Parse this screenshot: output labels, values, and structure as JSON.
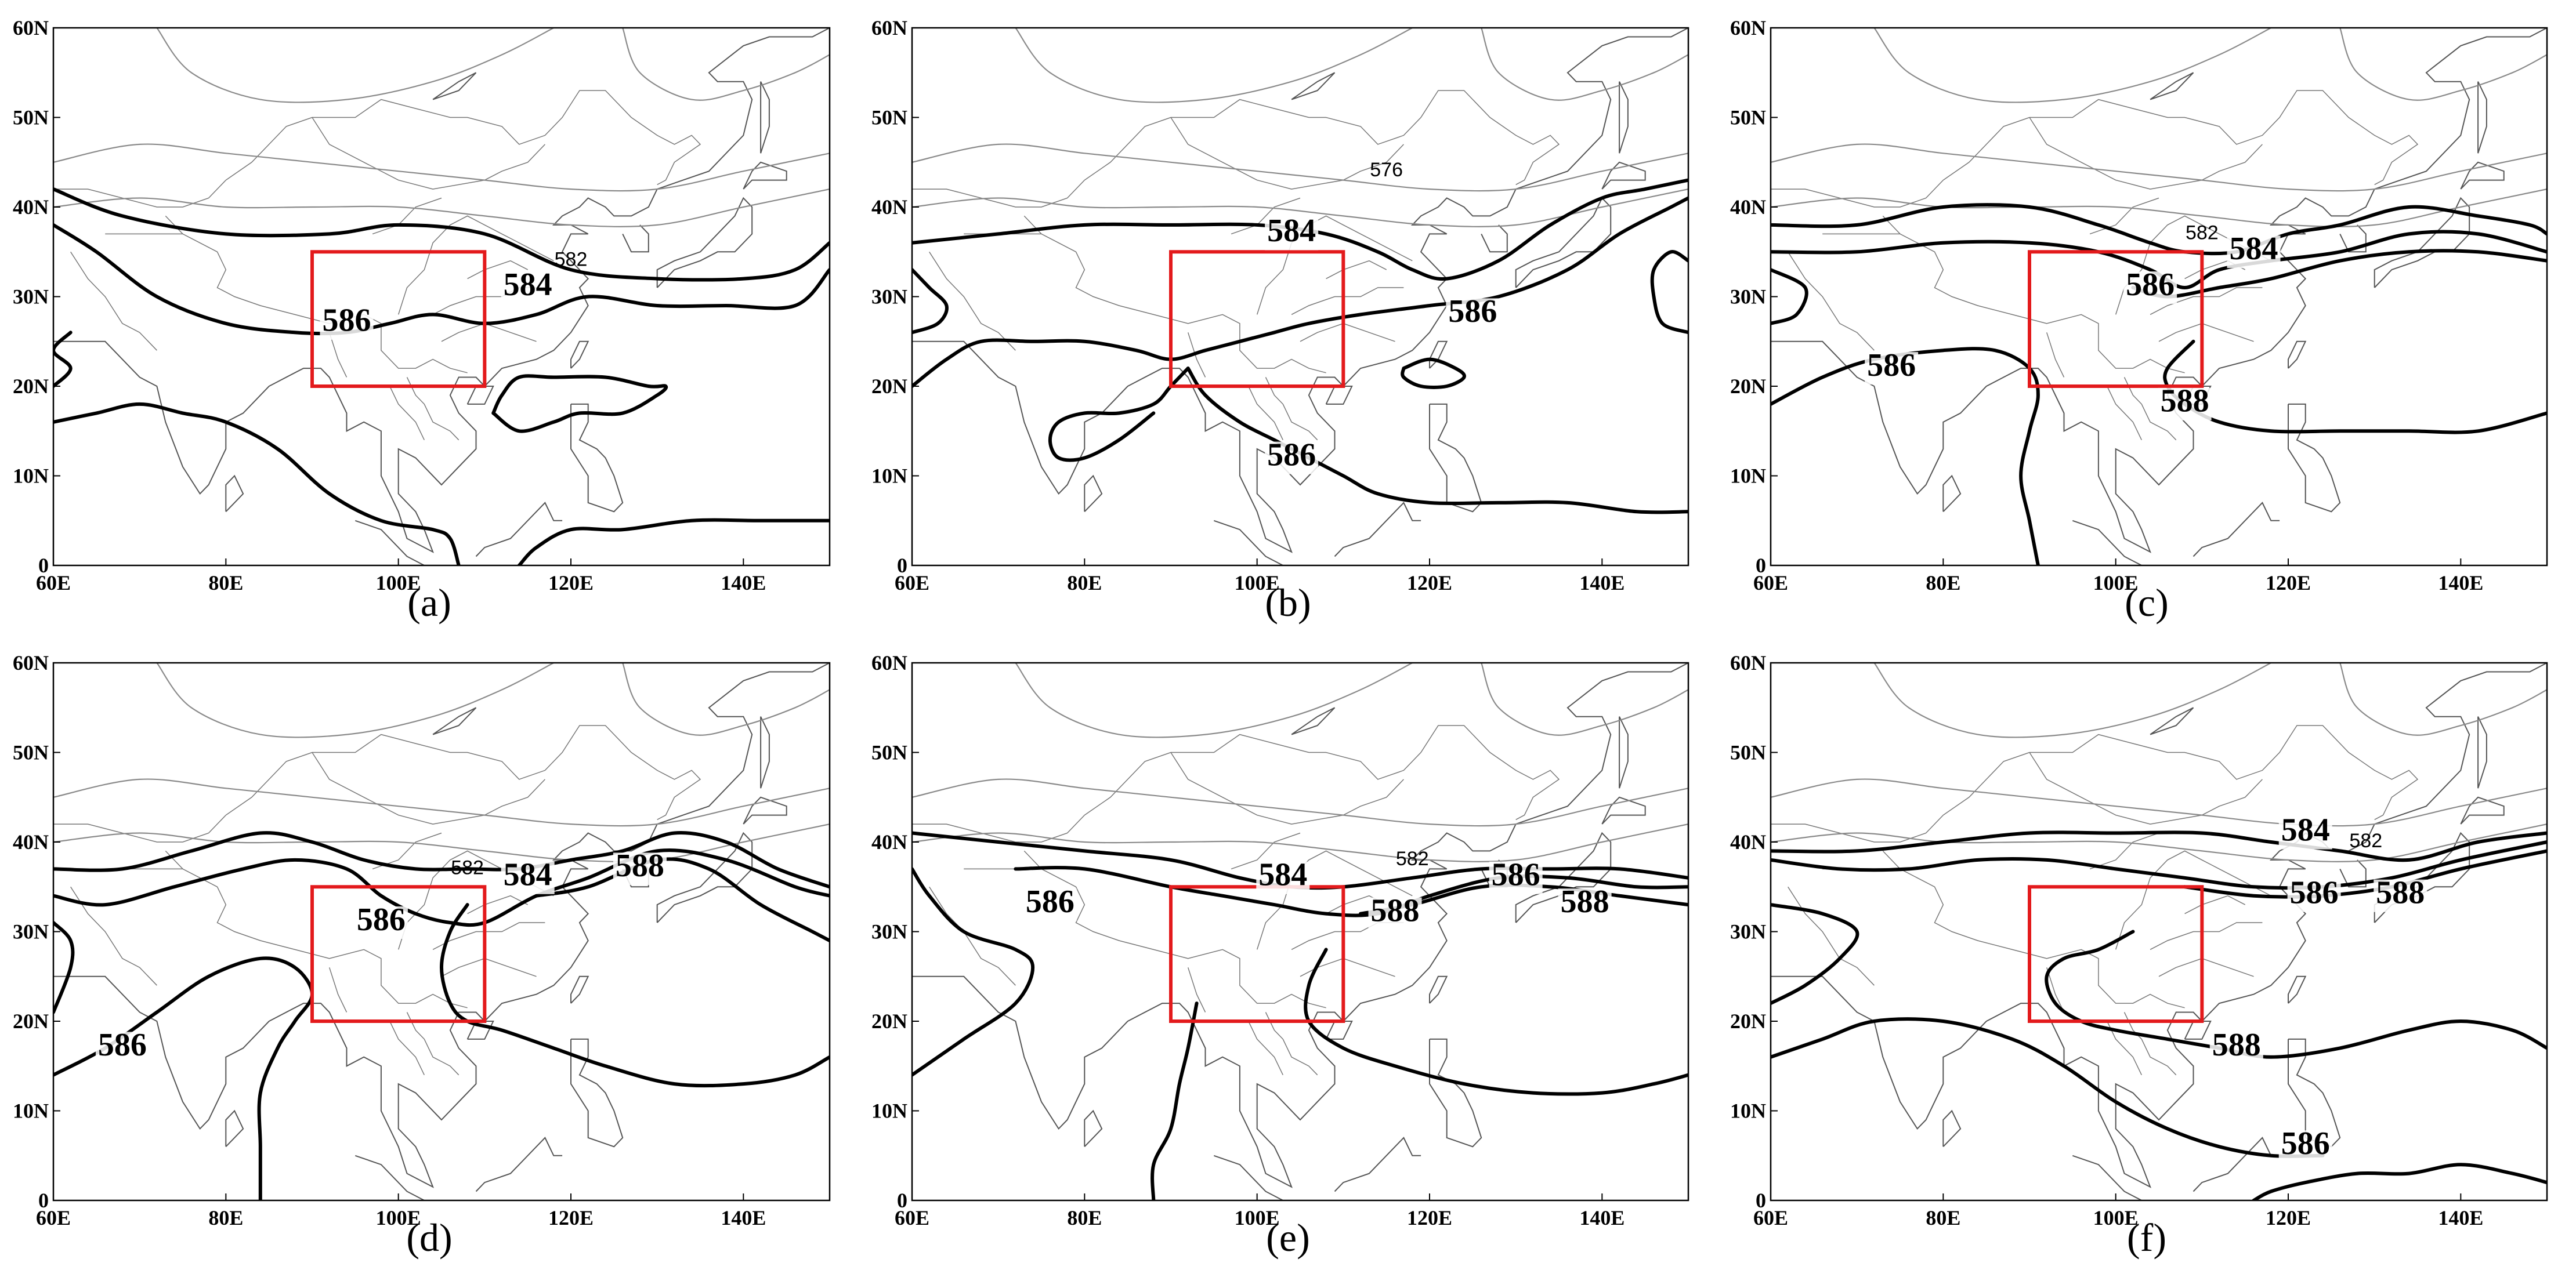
{
  "figure": {
    "x_ticks": [
      "60E",
      "80E",
      "100E",
      "120E",
      "140E"
    ],
    "y_ticks": [
      "60N",
      "50N",
      "40N",
      "30N",
      "20N",
      "10N",
      "0"
    ],
    "highlight_box": {
      "lon": [
        90,
        110
      ],
      "lat": [
        20,
        35
      ],
      "color": "#e31a1c"
    },
    "panels": [
      {
        "caption": "(a)",
        "labels": [
          {
            "text": "584",
            "bold": true,
            "lon": 115,
            "lat": 31
          },
          {
            "text": "582",
            "bold": false,
            "lon": 120,
            "lat": 34
          },
          {
            "text": "586",
            "bold": true,
            "lon": 94,
            "lat": 27
          }
        ]
      },
      {
        "caption": "(b)",
        "labels": [
          {
            "text": "576",
            "bold": false,
            "lon": 115,
            "lat": 44
          },
          {
            "text": "584",
            "bold": true,
            "lon": 104,
            "lat": 37
          },
          {
            "text": "586",
            "bold": true,
            "lon": 125,
            "lat": 28
          },
          {
            "text": "586",
            "bold": true,
            "lon": 104,
            "lat": 12
          }
        ]
      },
      {
        "caption": "(c)",
        "labels": [
          {
            "text": "582",
            "bold": false,
            "lon": 110,
            "lat": 37
          },
          {
            "text": "584",
            "bold": true,
            "lon": 116,
            "lat": 35
          },
          {
            "text": "586",
            "bold": true,
            "lon": 104,
            "lat": 31
          },
          {
            "text": "586",
            "bold": true,
            "lon": 74,
            "lat": 22
          },
          {
            "text": "588",
            "bold": true,
            "lon": 108,
            "lat": 18
          }
        ]
      },
      {
        "caption": "(d)",
        "labels": [
          {
            "text": "582",
            "bold": false,
            "lon": 108,
            "lat": 37
          },
          {
            "text": "584",
            "bold": true,
            "lon": 115,
            "lat": 36
          },
          {
            "text": "588",
            "bold": true,
            "lon": 128,
            "lat": 37
          },
          {
            "text": "586",
            "bold": true,
            "lon": 98,
            "lat": 31
          },
          {
            "text": "586",
            "bold": true,
            "lon": 68,
            "lat": 17
          }
        ]
      },
      {
        "caption": "(e)",
        "labels": [
          {
            "text": "586",
            "bold": true,
            "lon": 76,
            "lat": 33
          },
          {
            "text": "584",
            "bold": true,
            "lon": 103,
            "lat": 36
          },
          {
            "text": "582",
            "bold": false,
            "lon": 118,
            "lat": 38
          },
          {
            "text": "586",
            "bold": true,
            "lon": 130,
            "lat": 36
          },
          {
            "text": "588",
            "bold": true,
            "lon": 116,
            "lat": 32
          },
          {
            "text": "588",
            "bold": true,
            "lon": 138,
            "lat": 33
          }
        ]
      },
      {
        "caption": "(f)",
        "labels": [
          {
            "text": "584",
            "bold": true,
            "lon": 122,
            "lat": 41
          },
          {
            "text": "582",
            "bold": false,
            "lon": 129,
            "lat": 40
          },
          {
            "text": "586",
            "bold": true,
            "lon": 123,
            "lat": 34
          },
          {
            "text": "588",
            "bold": true,
            "lon": 133,
            "lat": 34
          },
          {
            "text": "588",
            "bold": true,
            "lon": 114,
            "lat": 17
          },
          {
            "text": "586",
            "bold": true,
            "lon": 122,
            "lat": 6
          }
        ]
      }
    ]
  }
}
